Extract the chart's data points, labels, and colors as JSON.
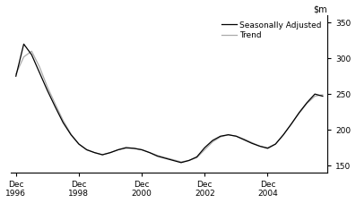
{
  "seasonally_adjusted": [
    275,
    320,
    305,
    280,
    255,
    232,
    210,
    193,
    180,
    172,
    168,
    165,
    168,
    172,
    175,
    174,
    172,
    168,
    163,
    160,
    157,
    154,
    157,
    162,
    175,
    185,
    191,
    193,
    191,
    186,
    181,
    177,
    174,
    180,
    193,
    208,
    224,
    238,
    250,
    247
  ],
  "trend": [
    278,
    302,
    310,
    288,
    260,
    236,
    213,
    194,
    180,
    172,
    168,
    165,
    168,
    172,
    174,
    174,
    172,
    168,
    164,
    161,
    158,
    155,
    157,
    161,
    172,
    183,
    190,
    193,
    191,
    187,
    182,
    177,
    175,
    180,
    193,
    208,
    223,
    237,
    247,
    249
  ],
  "x_start": 1996.917,
  "x_step": 0.25,
  "n_points": 40,
  "ylim": [
    140,
    360
  ],
  "yticks": [
    150,
    200,
    250,
    300,
    350
  ],
  "xtick_positions": [
    1996.917,
    1998.917,
    2000.917,
    2002.917,
    2004.917
  ],
  "xtick_labels": [
    "Dec\n1996",
    "Dec\n1998",
    "Dec\n2000",
    "Dec\n2002",
    "Dec\n2004"
  ],
  "sa_color": "#000000",
  "trend_color": "#aaaaaa",
  "sa_label": "Seasonally Adjusted",
  "trend_label": "Trend",
  "background_color": "#ffffff",
  "linewidth": 0.9
}
